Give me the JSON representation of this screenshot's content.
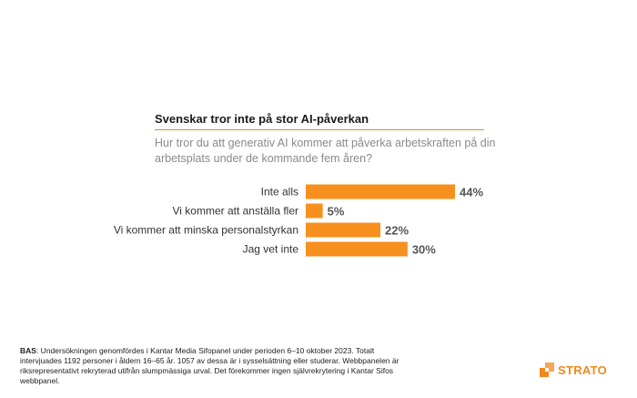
{
  "title": "Svenskar tror inte på stor AI-påverkan",
  "subtitle": "Hur tror du att generativ AI kommer att påverka arbetskraften på din arbetsplats under de kommande fem åren?",
  "chart_data": {
    "type": "bar",
    "orientation": "horizontal",
    "categories": [
      "Inte alls",
      "Vi kommer att anställa fler",
      "Vi kommer att minska personalstyrkan",
      "Jag vet inte"
    ],
    "values": [
      44,
      5,
      22,
      30
    ],
    "value_labels": [
      "44%",
      "5%",
      "22%",
      "30%"
    ],
    "xlim": [
      0,
      44
    ],
    "bar_color": "#f7901e",
    "label_color": "#555555",
    "grid": false
  },
  "footnote": {
    "label": "BAS",
    "text": ": Undersökningen genomfördes i Kantar Media Sifopanel under perioden 6–10 oktober 2023. Totalt intervjuades 1192 personer i åldern 16–65 år. 1057 av dessa är i sysselsättning eller studerar. Webbpanelen är riksrepresentativt rekryterad utifrån slumpmässiga urval. Det förekommer ingen självrekrytering i Kantar Sifos webbpanel."
  },
  "logo": {
    "text": "STRATO",
    "icon": "strato-logo-icon",
    "color": "#f08a1e"
  }
}
